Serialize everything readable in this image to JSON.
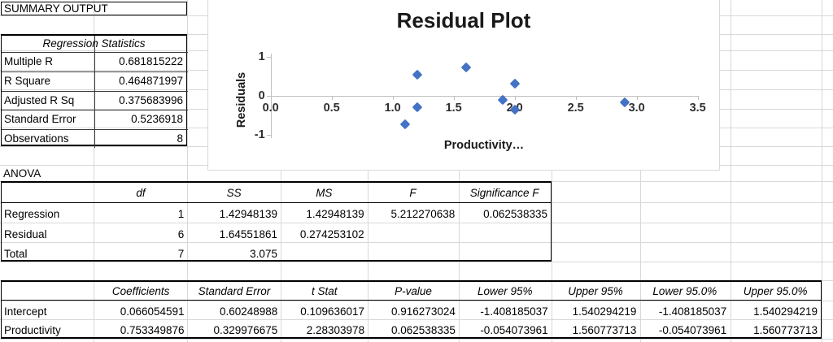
{
  "summary": {
    "title": "SUMMARY OUTPUT",
    "regression_statistics": {
      "header": "Regression Statistics",
      "rows": [
        [
          "Multiple R",
          "0.681815222"
        ],
        [
          "R Square",
          "0.464871997"
        ],
        [
          "Adjusted R Sq",
          "0.375683996"
        ],
        [
          "Standard Error",
          "0.5236918"
        ],
        [
          "Observations",
          "8"
        ]
      ]
    }
  },
  "anova": {
    "title": "ANOVA",
    "columns": [
      "",
      "df",
      "SS",
      "MS",
      "F",
      "Significance F"
    ],
    "rows": [
      [
        "Regression",
        "1",
        "1.42948139",
        "1.42948139",
        "5.212270638",
        "0.062538335"
      ],
      [
        "Residual",
        "6",
        "1.64551861",
        "0.274253102",
        "",
        ""
      ],
      [
        "Total",
        "7",
        "3.075",
        "",
        "",
        ""
      ]
    ]
  },
  "coefficients": {
    "columns": [
      "",
      "Coefficients",
      "Standard Error",
      "t Stat",
      "P-value",
      "Lower 95%",
      "Upper 95%",
      "Lower 95.0%",
      "Upper 95.0%"
    ],
    "rows": [
      [
        "Intercept",
        "0.066054591",
        "0.60248988",
        "0.109636017",
        "0.916273024",
        "-1.408185037",
        "1.540294219",
        "-1.408185037",
        "1.540294219"
      ],
      [
        "Productivity",
        "0.753349876",
        "0.329976675",
        "2.28303978",
        "0.062538335",
        "-0.054073961",
        "1.560773713",
        "-0.054073961",
        "1.560773713"
      ]
    ]
  },
  "chart_data": {
    "type": "scatter",
    "title": "Residual Plot",
    "xlabel": "Productivity…",
    "ylabel": "Residuals",
    "x_ticks": [
      "0.0",
      "0.5",
      "1.0",
      "1.5",
      "2.0",
      "2.5",
      "3.0",
      "3.5"
    ],
    "y_ticks": [
      "1",
      "0",
      "-1"
    ],
    "xlim": [
      0,
      3.5
    ],
    "ylim": [
      -1,
      1
    ],
    "legend": "none",
    "grid": "off",
    "marker_color": "#4472C4",
    "points": [
      {
        "x": 1.1,
        "y": -0.72
      },
      {
        "x": 1.2,
        "y": 0.53
      },
      {
        "x": 1.2,
        "y": -0.28
      },
      {
        "x": 1.6,
        "y": 0.73
      },
      {
        "x": 1.9,
        "y": -0.11
      },
      {
        "x": 2.0,
        "y": 0.32
      },
      {
        "x": 2.0,
        "y": -0.36
      },
      {
        "x": 2.9,
        "y": -0.16
      }
    ]
  }
}
